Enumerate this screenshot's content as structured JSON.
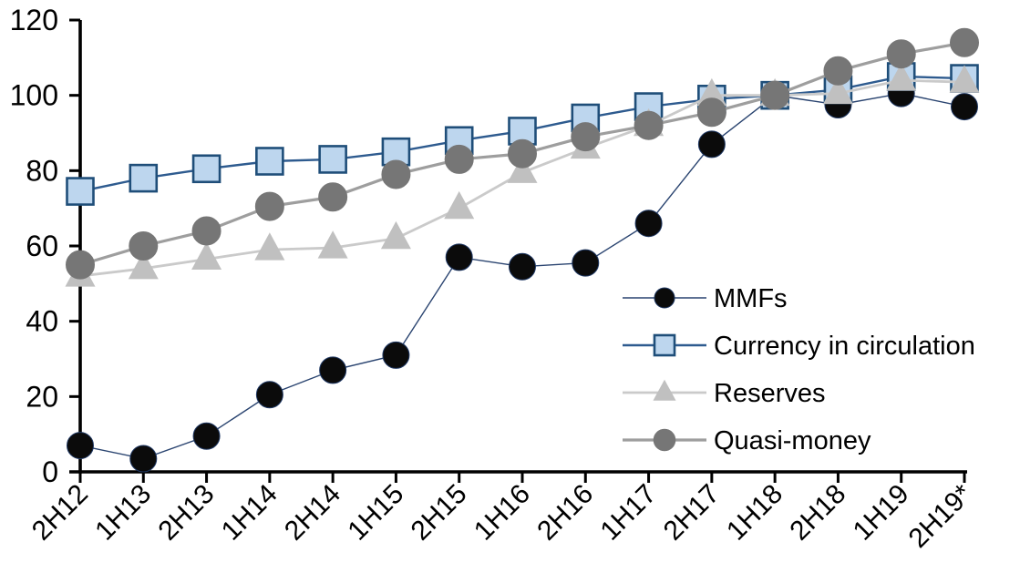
{
  "chart_data": {
    "type": "line",
    "title": "",
    "xlabel": "",
    "ylabel": "",
    "categories": [
      "2H12",
      "1H13",
      "2H13",
      "1H14",
      "2H14",
      "1H15",
      "2H15",
      "1H16",
      "2H16",
      "1H17",
      "2H17",
      "1H18",
      "2H18",
      "1H19",
      "2H19*"
    ],
    "series": [
      {
        "name": "MMFs",
        "marker": "circle",
        "marker_color": "#0b0b0b",
        "marker_stroke": "#1f3864",
        "line_color": "#2a4470",
        "line_width": 1.4,
        "marker_size": 29,
        "values": [
          7,
          3.5,
          9.5,
          20.5,
          27,
          31,
          57,
          54.5,
          55.5,
          66,
          87,
          100,
          97.5,
          100.5,
          97
        ]
      },
      {
        "name": "Currency in circulation",
        "marker": "square",
        "marker_color": "#bdd6ee",
        "marker_stroke": "#1f4e79",
        "line_color": "#2e5b8f",
        "line_width": 2.4,
        "marker_size": 29,
        "values": [
          74.5,
          78,
          80.5,
          82.5,
          83,
          85,
          88,
          90.5,
          94,
          97,
          99,
          100,
          101.5,
          105,
          104.5
        ]
      },
      {
        "name": "Reserves",
        "marker": "triangle",
        "marker_color": "#c0c0c0",
        "marker_stroke": "#c0c0c0",
        "line_color": "#cacaca",
        "line_width": 2.8,
        "marker_size": 33,
        "values": [
          52,
          54,
          56.5,
          59,
          59.5,
          62,
          70,
          79.5,
          86,
          92,
          100,
          100,
          100.5,
          104,
          103.5
        ]
      },
      {
        "name": "Quasi-money",
        "marker": "circle",
        "marker_color": "#767676",
        "marker_stroke": "#767676",
        "line_color": "#9e9e9e",
        "line_width": 3.2,
        "marker_size": 31,
        "values": [
          55,
          60,
          64,
          70.5,
          73,
          79,
          83,
          84.5,
          89,
          92,
          95.5,
          100,
          106.5,
          111,
          114
        ]
      }
    ],
    "ylim": [
      0,
      120
    ],
    "yticks": [
      0,
      20,
      40,
      60,
      80,
      100,
      120
    ],
    "grid": false,
    "legend": [
      "MMFs",
      "Currency in circulation",
      "Reserves",
      "Quasi-money"
    ],
    "legend_position": "inside-right",
    "axis_color": "#000000"
  }
}
